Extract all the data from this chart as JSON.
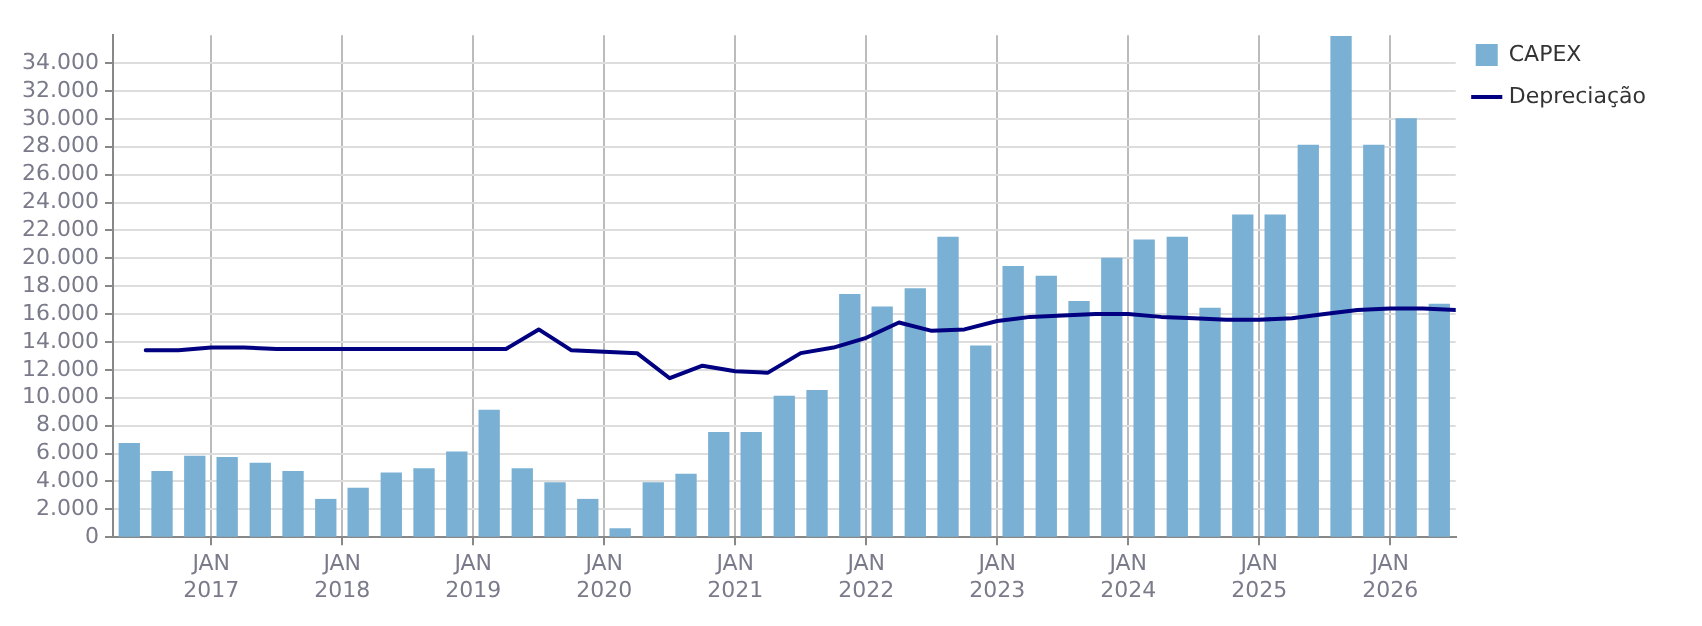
{
  "chart_data": {
    "type": "bar",
    "xlim": [
      "2016-04",
      "2026-07"
    ],
    "xticks": [
      {
        "value": "2017-01",
        "label": "JAN 2017"
      },
      {
        "value": "2018-01",
        "label": "JAN 2018"
      },
      {
        "value": "2019-01",
        "label": "JAN 2019"
      },
      {
        "value": "2020-01",
        "label": "JAN 2020"
      },
      {
        "value": "2021-01",
        "label": "JAN 2021"
      },
      {
        "value": "2022-01",
        "label": "JAN 2022"
      },
      {
        "value": "2023-01",
        "label": "JAN 2023"
      },
      {
        "value": "2024-01",
        "label": "JAN 2024"
      },
      {
        "value": "2025-01",
        "label": "JAN 2025"
      },
      {
        "value": "2026-01",
        "label": "JAN 2026"
      }
    ],
    "ylim": [
      0,
      36000
    ],
    "yticks": [
      {
        "value": 0,
        "label": "0"
      },
      {
        "value": 2000,
        "label": "2.000"
      },
      {
        "value": 4000,
        "label": "4.000"
      },
      {
        "value": 6000,
        "label": "6.000"
      },
      {
        "value": 8000,
        "label": "8.000"
      },
      {
        "value": 10000,
        "label": "10.000"
      },
      {
        "value": 12000,
        "label": "12.000"
      },
      {
        "value": 14000,
        "label": "14.000"
      },
      {
        "value": 16000,
        "label": "16.000"
      },
      {
        "value": 18000,
        "label": "18.000"
      },
      {
        "value": 20000,
        "label": "20.000"
      },
      {
        "value": 22000,
        "label": "22.000"
      },
      {
        "value": 24000,
        "label": "24.000"
      },
      {
        "value": 26000,
        "label": "26.000"
      },
      {
        "value": 28000,
        "label": "28.000"
      },
      {
        "value": 30000,
        "label": "30.000"
      },
      {
        "value": 32000,
        "label": "32.000"
      },
      {
        "value": 34000,
        "label": "34.000"
      }
    ],
    "grid": true,
    "legend": "top right",
    "marker": "none",
    "series": [
      {
        "name": "CAPEX",
        "color": "#7ab0d3",
        "x": [
          "2016-05-16",
          "2016-08-16",
          "2016-11-16",
          "2017-02-15",
          "2017-05-16",
          "2017-08-16",
          "2017-11-16",
          "2018-02-15",
          "2018-05-16",
          "2018-08-16",
          "2018-11-16",
          "2019-02-15",
          "2019-05-16",
          "2019-08-16",
          "2019-11-16",
          "2020-02-15",
          "2020-05-16",
          "2020-08-16",
          "2020-11-16",
          "2021-02-15",
          "2021-05-16",
          "2021-08-16",
          "2021-11-16",
          "2022-02-15",
          "2022-05-16",
          "2022-08-16",
          "2022-11-16",
          "2023-02-15",
          "2023-05-16",
          "2023-08-16",
          "2023-11-16",
          "2024-02-15",
          "2024-05-16",
          "2024-08-16",
          "2024-11-16",
          "2025-02-15",
          "2025-05-16",
          "2025-08-16",
          "2025-11-16",
          "2026-02-15",
          "2026-05-16"
        ],
        "values": [
          6700,
          4700,
          5800,
          5700,
          5300,
          4700,
          2700,
          3500,
          4600,
          4900,
          6100,
          9100,
          4900,
          3900,
          2700,
          600,
          3900,
          4500,
          7500,
          7500,
          10100,
          10500,
          17400,
          16500,
          17800,
          21500,
          13700,
          19400,
          18700,
          16900,
          20000,
          21300,
          21500,
          16400,
          23100,
          23100,
          28100,
          35900,
          28100,
          30000,
          16700
        ]
      },
      {
        "name": "Depreciação",
        "type": "line",
        "color": "#000080",
        "x": [
          "2016-07",
          "2016-10",
          "2017-01",
          "2017-04",
          "2017-07",
          "2017-10",
          "2018-01",
          "2018-04",
          "2018-07",
          "2018-10",
          "2019-01",
          "2019-04",
          "2019-07",
          "2019-10",
          "2020-01",
          "2020-04",
          "2020-07",
          "2020-10",
          "2021-01",
          "2021-04",
          "2021-07",
          "2021-10",
          "2022-01",
          "2022-04",
          "2022-07",
          "2022-10",
          "2023-01",
          "2023-04",
          "2023-07",
          "2023-10",
          "2024-01",
          "2024-04",
          "2024-07",
          "2024-10",
          "2025-01",
          "2025-04",
          "2025-07",
          "2025-10",
          "2026-01",
          "2026-04",
          "2026-07"
        ],
        "values": [
          13400,
          13400,
          13600,
          13600,
          13500,
          13500,
          13500,
          13500,
          13500,
          13500,
          13500,
          13500,
          14900,
          13400,
          13300,
          13200,
          11400,
          12300,
          11900,
          11800,
          13200,
          13600,
          14300,
          15400,
          14800,
          14900,
          15500,
          15800,
          15900,
          16000,
          16000,
          15800,
          15700,
          15600,
          15600,
          15700,
          16000,
          16300,
          16400,
          16400,
          16300
        ]
      }
    ]
  }
}
